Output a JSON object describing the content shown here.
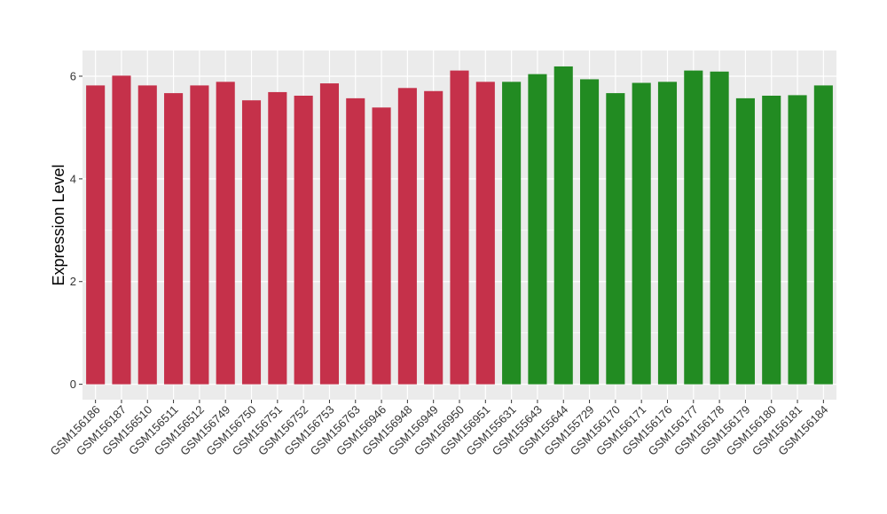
{
  "chart_data": {
    "type": "bar",
    "title": "",
    "xlabel": "",
    "ylabel": "Expression Level",
    "ylim": [
      -0.3,
      6.5
    ],
    "yticks": [
      0,
      2,
      4,
      6
    ],
    "grid": true,
    "background": "#ebebeb",
    "colors": {
      "group1": "#c5314a",
      "group2": "#228b22"
    },
    "categories": [
      "GSM156186",
      "GSM156187",
      "GSM156510",
      "GSM156511",
      "GSM156512",
      "GSM156749",
      "GSM156750",
      "GSM156751",
      "GSM156752",
      "GSM156753",
      "GSM156763",
      "GSM156946",
      "GSM156948",
      "GSM156949",
      "GSM156950",
      "GSM156951",
      "GSM155631",
      "GSM155643",
      "GSM155644",
      "GSM155729",
      "GSM156170",
      "GSM156171",
      "GSM156176",
      "GSM156177",
      "GSM156178",
      "GSM156179",
      "GSM156180",
      "GSM156181",
      "GSM156184"
    ],
    "values": [
      5.82,
      6.01,
      5.82,
      5.67,
      5.82,
      5.89,
      5.53,
      5.69,
      5.62,
      5.86,
      5.57,
      5.39,
      5.77,
      5.71,
      6.11,
      5.89,
      5.89,
      6.04,
      6.19,
      5.94,
      5.67,
      5.87,
      5.89,
      6.11,
      6.09,
      5.57,
      5.62,
      5.63,
      5.82
    ],
    "groups": [
      "group1",
      "group1",
      "group1",
      "group1",
      "group1",
      "group1",
      "group1",
      "group1",
      "group1",
      "group1",
      "group1",
      "group1",
      "group1",
      "group1",
      "group1",
      "group1",
      "group2",
      "group2",
      "group2",
      "group2",
      "group2",
      "group2",
      "group2",
      "group2",
      "group2",
      "group2",
      "group2",
      "group2",
      "group2"
    ]
  }
}
